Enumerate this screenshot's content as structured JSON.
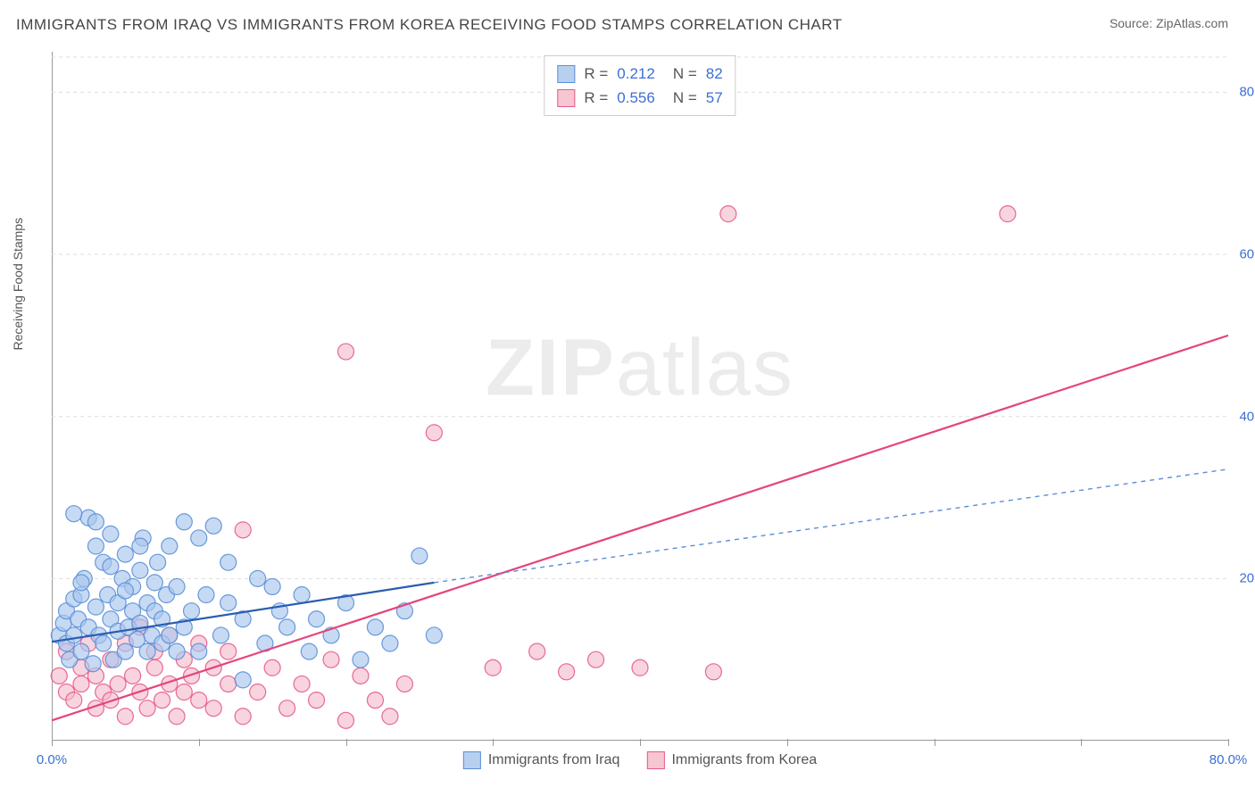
{
  "header": {
    "title": "IMMIGRANTS FROM IRAQ VS IMMIGRANTS FROM KOREA RECEIVING FOOD STAMPS CORRELATION CHART",
    "source_label": "Source: ",
    "source_value": "ZipAtlas.com"
  },
  "chart": {
    "type": "scatter",
    "y_axis_label": "Receiving Food Stamps",
    "watermark_bold": "ZIP",
    "watermark_rest": "atlas",
    "xlim": [
      0,
      80
    ],
    "ylim": [
      0,
      85
    ],
    "x_ticks": [
      0,
      10,
      20,
      30,
      40,
      50,
      60,
      70,
      80
    ],
    "x_tick_labels": {
      "0": "0.0%",
      "80": "80.0%"
    },
    "y_gridlines": [
      20,
      40,
      60,
      80
    ],
    "y_tick_labels": {
      "20": "20.0%",
      "40": "40.0%",
      "60": "60.0%",
      "80": "80.0%"
    },
    "series_iraq": {
      "label": "Immigrants from Iraq",
      "swatch_fill": "#b7d0ef",
      "swatch_border": "#5a8fd8",
      "marker_fill": "#a9c6ec",
      "marker_stroke": "#5a8fd8",
      "marker_opacity": 0.65,
      "marker_radius": 9,
      "r_value": "0.212",
      "n_value": "82",
      "regression": {
        "solid": {
          "x1": 0,
          "y1": 12.2,
          "x2": 26,
          "y2": 19.5,
          "stroke": "#2b5db0",
          "width": 2.2
        },
        "dashed": {
          "x1": 26,
          "y1": 19.5,
          "x2": 80,
          "y2": 33.5,
          "stroke": "#5a8fd8",
          "width": 1.4,
          "dash": "5,5"
        }
      },
      "points": [
        [
          0.5,
          13
        ],
        [
          0.8,
          14.5
        ],
        [
          1,
          12
        ],
        [
          1,
          16
        ],
        [
          1.2,
          10
        ],
        [
          1.5,
          17.5
        ],
        [
          1.5,
          13
        ],
        [
          1.8,
          15
        ],
        [
          2,
          18
        ],
        [
          2,
          11
        ],
        [
          2.2,
          20
        ],
        [
          2.5,
          27.5
        ],
        [
          2.5,
          14
        ],
        [
          2.8,
          9.5
        ],
        [
          3,
          24
        ],
        [
          3,
          16.5
        ],
        [
          3.2,
          13
        ],
        [
          3.5,
          22
        ],
        [
          3.5,
          12
        ],
        [
          3.8,
          18
        ],
        [
          4,
          15
        ],
        [
          4,
          25.5
        ],
        [
          4.2,
          10
        ],
        [
          4.5,
          17
        ],
        [
          4.5,
          13.5
        ],
        [
          4.8,
          20
        ],
        [
          5,
          11
        ],
        [
          5,
          23
        ],
        [
          5.2,
          14
        ],
        [
          5.5,
          16
        ],
        [
          5.5,
          19
        ],
        [
          5.8,
          12.5
        ],
        [
          6,
          21
        ],
        [
          6,
          14.5
        ],
        [
          6.2,
          25
        ],
        [
          6.5,
          11
        ],
        [
          6.5,
          17
        ],
        [
          6.8,
          13
        ],
        [
          7,
          19.5
        ],
        [
          7,
          16
        ],
        [
          7.2,
          22
        ],
        [
          7.5,
          12
        ],
        [
          7.5,
          15
        ],
        [
          7.8,
          18
        ],
        [
          8,
          24
        ],
        [
          8,
          13
        ],
        [
          8.5,
          19
        ],
        [
          8.5,
          11
        ],
        [
          9,
          27
        ],
        [
          9,
          14
        ],
        [
          9.5,
          16
        ],
        [
          10,
          25
        ],
        [
          10,
          11
        ],
        [
          10.5,
          18
        ],
        [
          11,
          26.5
        ],
        [
          11.5,
          13
        ],
        [
          12,
          17
        ],
        [
          12,
          22
        ],
        [
          13,
          15
        ],
        [
          13,
          7.5
        ],
        [
          14,
          20
        ],
        [
          14.5,
          12
        ],
        [
          15,
          19
        ],
        [
          15.5,
          16
        ],
        [
          16,
          14
        ],
        [
          17,
          18
        ],
        [
          17.5,
          11
        ],
        [
          18,
          15
        ],
        [
          19,
          13
        ],
        [
          20,
          17
        ],
        [
          21,
          10
        ],
        [
          22,
          14
        ],
        [
          23,
          12
        ],
        [
          24,
          16
        ],
        [
          25,
          22.8
        ],
        [
          26,
          13
        ],
        [
          1.5,
          28
        ],
        [
          2,
          19.5
        ],
        [
          3,
          27
        ],
        [
          4,
          21.5
        ],
        [
          5,
          18.5
        ],
        [
          6,
          24
        ]
      ]
    },
    "series_korea": {
      "label": "Immigrants from Korea",
      "swatch_fill": "#f6c6d2",
      "swatch_border": "#e55a8a",
      "marker_fill": "#f4b7c9",
      "marker_stroke": "#e55a8a",
      "marker_opacity": 0.6,
      "marker_radius": 9,
      "r_value": "0.556",
      "n_value": "57",
      "regression": {
        "solid": {
          "x1": 0,
          "y1": 2.5,
          "x2": 80,
          "y2": 50,
          "stroke": "#e5447c",
          "width": 2.2
        }
      },
      "points": [
        [
          0.5,
          8
        ],
        [
          1,
          6
        ],
        [
          1,
          11
        ],
        [
          1.5,
          5
        ],
        [
          2,
          9
        ],
        [
          2,
          7
        ],
        [
          2.5,
          12
        ],
        [
          3,
          4
        ],
        [
          3,
          8
        ],
        [
          3.5,
          6
        ],
        [
          4,
          10
        ],
        [
          4,
          5
        ],
        [
          4.5,
          7
        ],
        [
          5,
          12
        ],
        [
          5,
          3
        ],
        [
          5.5,
          8
        ],
        [
          6,
          6
        ],
        [
          6,
          14
        ],
        [
          6.5,
          4
        ],
        [
          7,
          9
        ],
        [
          7,
          11
        ],
        [
          7.5,
          5
        ],
        [
          8,
          7
        ],
        [
          8,
          13
        ],
        [
          8.5,
          3
        ],
        [
          9,
          10
        ],
        [
          9,
          6
        ],
        [
          9.5,
          8
        ],
        [
          10,
          5
        ],
        [
          10,
          12
        ],
        [
          11,
          4
        ],
        [
          11,
          9
        ],
        [
          12,
          7
        ],
        [
          12,
          11
        ],
        [
          13,
          3
        ],
        [
          13,
          26
        ],
        [
          14,
          6
        ],
        [
          15,
          9
        ],
        [
          16,
          4
        ],
        [
          17,
          7
        ],
        [
          18,
          5
        ],
        [
          19,
          10
        ],
        [
          20,
          2.5
        ],
        [
          21,
          8
        ],
        [
          22,
          5
        ],
        [
          23,
          3
        ],
        [
          24,
          7
        ],
        [
          20,
          48
        ],
        [
          26,
          38
        ],
        [
          30,
          9
        ],
        [
          33,
          11
        ],
        [
          35,
          8.5
        ],
        [
          37,
          10
        ],
        [
          40,
          9
        ],
        [
          46,
          65
        ],
        [
          45,
          8.5
        ],
        [
          65,
          65
        ]
      ]
    },
    "stats_legend": {
      "r_label": "R  =",
      "n_label": "N  ="
    },
    "colors": {
      "background": "#ffffff",
      "grid": "#dddddd",
      "axis": "#999999",
      "tick_text": "#3b6fd6",
      "title_text": "#454545"
    }
  }
}
